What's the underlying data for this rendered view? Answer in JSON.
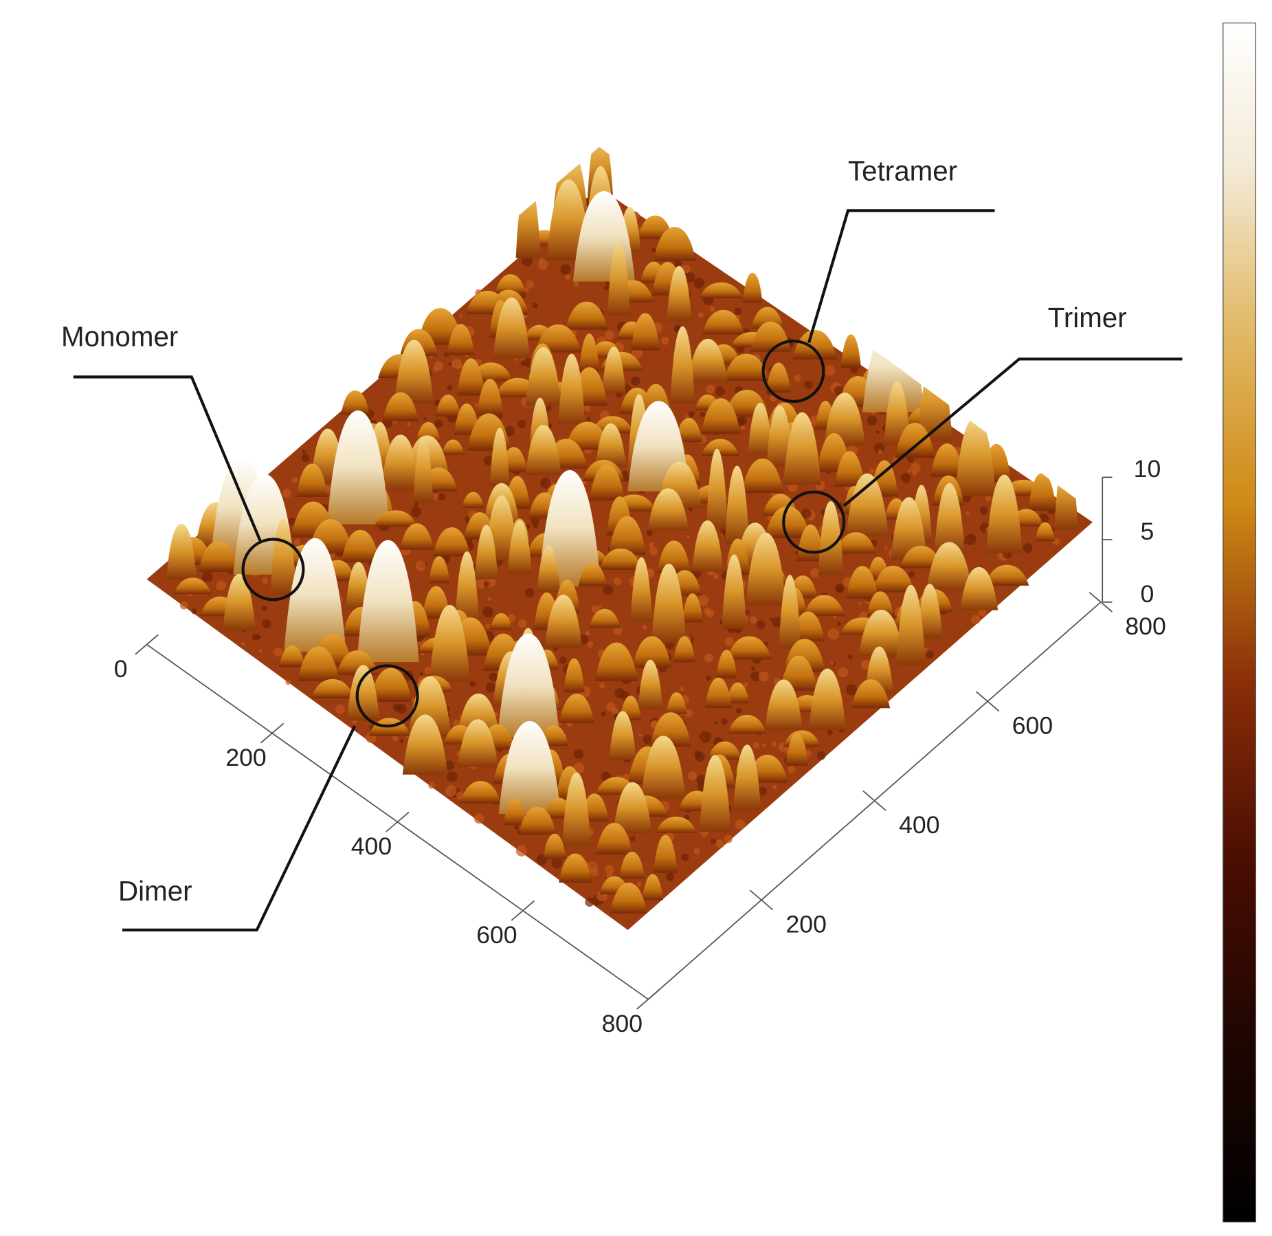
{
  "chart_data": {
    "type": "surface",
    "annotations": [
      "Monomer",
      "Tetramer",
      "Trimer",
      "Dimer"
    ],
    "xlim": [
      0,
      800
    ],
    "xticks": [
      0,
      200,
      400,
      600,
      800
    ],
    "ylim": [
      0,
      800
    ],
    "yticks": [
      200,
      400,
      600,
      800
    ],
    "zlim": [
      0,
      10
    ],
    "zticks": [
      0,
      5,
      10
    ]
  }
}
